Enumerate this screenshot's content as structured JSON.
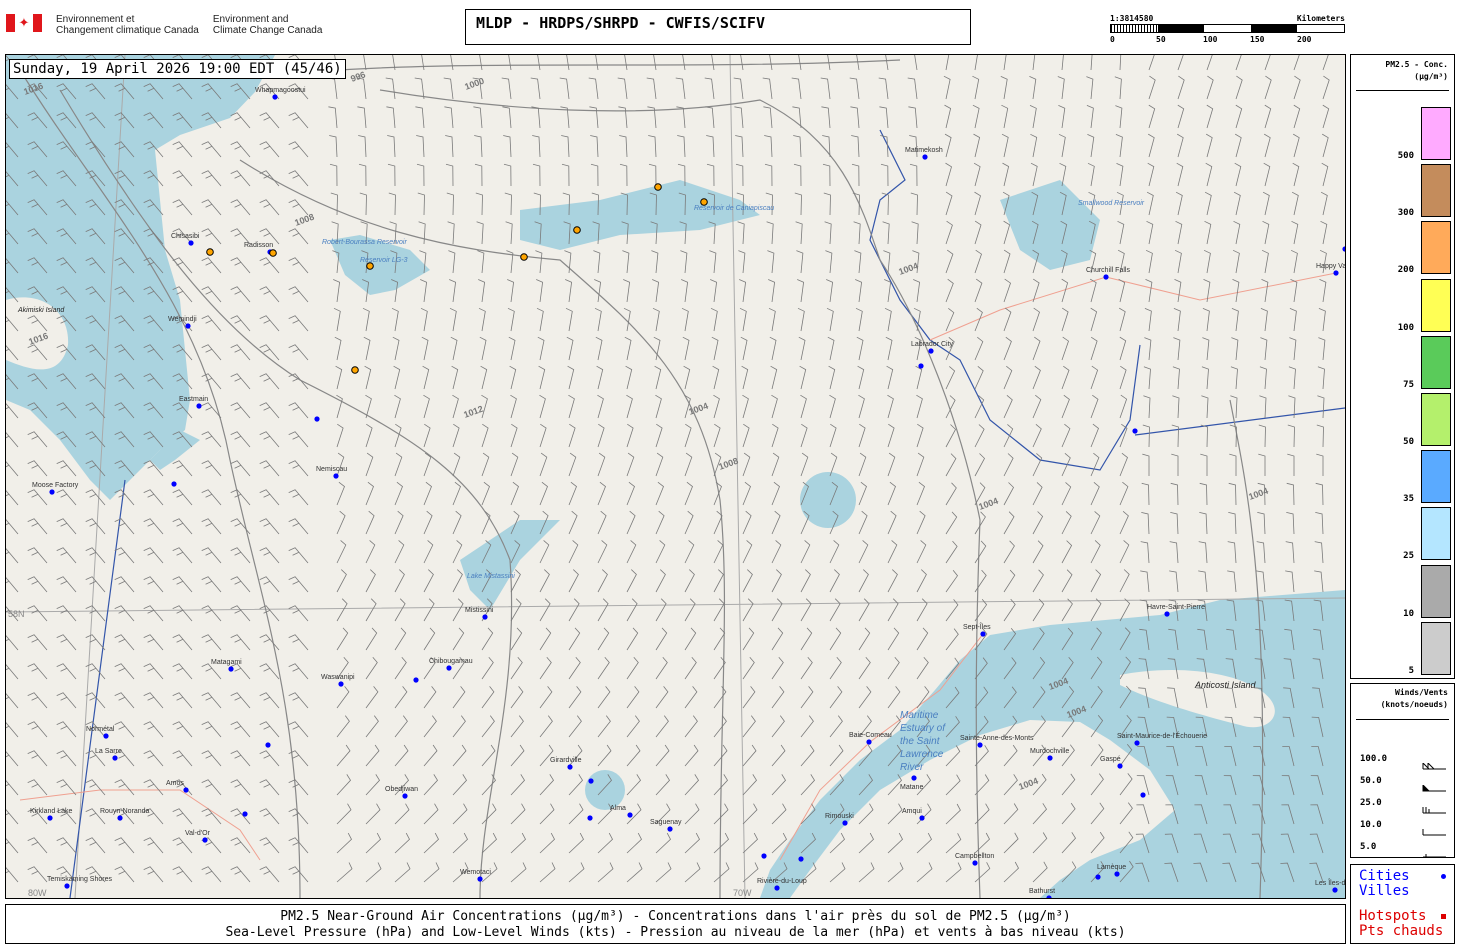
{
  "header": {
    "agency_fr": [
      "Environnement et",
      "Changement climatique Canada"
    ],
    "agency_en": [
      "Environment and",
      "Climate Change Canada"
    ],
    "title": "MLDP - HRDPS/SHRPD - CWFIS/SCIFV",
    "scale": {
      "ratio": "1:3814580",
      "unit": "Kilometers",
      "ticks": [
        "0",
        "50",
        "100",
        "150",
        "200"
      ]
    }
  },
  "map": {
    "timestamp": "Sunday, 19 April 2026 19:00 EDT (45/46)",
    "colors": {
      "water": "#aad3df",
      "land": "#f1efe9",
      "city": "#0000ff",
      "hotspot": "#ffa500",
      "barb": "#7a7a7a",
      "isobar": "#888888",
      "border": "#3355aa",
      "road": "#f0a090"
    },
    "isobar_labels": [
      "1016",
      "1016",
      "1012",
      "1008",
      "1008",
      "1004",
      "1004",
      "1004",
      "1004",
      "1004",
      "1004",
      "1004",
      "1000",
      "996"
    ],
    "graticule_labels": [
      "58N",
      "80W",
      "70W"
    ],
    "water_labels": [
      "Robert-Bourassa Reservoir",
      "Réservoir LG-3",
      "Smallwood Reservoir",
      "Lake Mistassini",
      "Maritime Estuary of the Saint Lawrence River",
      "Réservoir de Caniapiscau"
    ],
    "island_labels": [
      "Akimiski Island",
      "Anticosti Island"
    ],
    "cities": [
      "Whapmagoostui",
      "Chisasibi",
      "Radisson",
      "Wemindji",
      "Eastmain",
      "Moose Factory",
      "Nemiscau",
      "Mistissini",
      "Matagami",
      "Waswanipi",
      "Chibougamau",
      "Normétal",
      "La Sarre",
      "Amos",
      "Kirkland Lake",
      "Rouyn-Noranda",
      "Val-d'Or",
      "Obedjiwan",
      "Girardville",
      "Alma",
      "Saguenay",
      "Wemotaci",
      "Temiskaming Shores",
      "Sept-Îles",
      "Havre-Saint-Pierre",
      "Baie-Comeau",
      "Sainte-Anne-des-Monts",
      "Matane",
      "Rimouski",
      "Amqui",
      "Murdochville",
      "Gaspé",
      "Saint-Maurice-de-l'Échouerie",
      "Campbellton",
      "Bathurst",
      "Lamèque",
      "Rivière-du-Loup",
      "Matimekosh",
      "Churchill Falls",
      "Labrador City",
      "Happy Valley-Goose Bay",
      "Les Îles-de-la-Madeleine"
    ],
    "hotspot_count": 8
  },
  "pm_legend": {
    "title": "PM2.5 - Conc.",
    "unit": "(µg/m³)",
    "bins": [
      {
        "label": "500",
        "color": "#ffaaff"
      },
      {
        "label": "300",
        "color": "#c48c5c"
      },
      {
        "label": "200",
        "color": "#ffaa5a"
      },
      {
        "label": "100",
        "color": "#ffff55"
      },
      {
        "label": "75",
        "color": "#5acb5a"
      },
      {
        "label": "50",
        "color": "#b4f06c"
      },
      {
        "label": "35",
        "color": "#5aaaff"
      },
      {
        "label": "25",
        "color": "#b4e6ff"
      },
      {
        "label": "10",
        "color": "#aaaaaa"
      },
      {
        "label": "5",
        "color": "#cccccc"
      }
    ]
  },
  "wind_legend": {
    "title": "Winds/Vents",
    "unit": "(knots/noeuds)",
    "rows": [
      "100.0",
      "50.0",
      "25.0",
      "10.0",
      "5.0"
    ]
  },
  "symbols": {
    "cities_en": "Cities",
    "cities_fr": "Villes",
    "hotspots_en": "Hotspots",
    "hotspots_fr": "Pts chauds",
    "cities_color": "#0000ff",
    "hotspots_color": "#dd0000"
  },
  "caption": {
    "line1": "PM2.5 Near-Ground Air Concentrations (µg/m³) - Concentrations dans l'air près du sol de PM2.5 (µg/m³)",
    "line2": "Sea-Level Pressure (hPa) and Low-Level Winds (kts) - Pression au niveau de la mer (hPa) et vents à bas niveau (kts)"
  }
}
